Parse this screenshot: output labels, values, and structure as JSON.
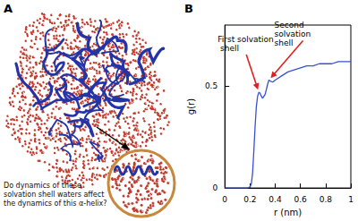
{
  "panels": {
    "A": {
      "label": "A",
      "text": "Do dynamics of these solvation shell waters affect the dynamics of this α-helix?"
    },
    "B": {
      "label": "B"
    }
  },
  "chart_data": {
    "type": "line",
    "x_label": "r (nm)",
    "y_label": "g(r)",
    "color": "#3a50d4",
    "grid": false,
    "x": [
      0,
      0.1,
      0.18,
      0.2,
      0.21,
      0.22,
      0.23,
      0.24,
      0.25,
      0.26,
      0.27,
      0.28,
      0.29,
      0.3,
      0.32,
      0.34,
      0.35,
      0.36,
      0.38,
      0.4,
      0.45,
      0.5,
      0.55,
      0.6,
      0.65,
      0.7,
      0.75,
      0.8,
      0.85,
      0.9,
      0.95,
      1.0
    ],
    "values": [
      0,
      0,
      0,
      0.005,
      0.02,
      0.07,
      0.18,
      0.3,
      0.4,
      0.45,
      0.47,
      0.465,
      0.45,
      0.44,
      0.46,
      0.51,
      0.53,
      0.525,
      0.52,
      0.53,
      0.55,
      0.57,
      0.58,
      0.59,
      0.6,
      0.6,
      0.61,
      0.61,
      0.61,
      0.62,
      0.62,
      0.62
    ],
    "xlim": [
      0,
      1
    ],
    "xticks": [
      0,
      0.2,
      0.4,
      0.6,
      0.8,
      1
    ],
    "ylim": [
      0,
      0.8
    ],
    "yticks": [
      0,
      0.5
    ],
    "annotations": [
      {
        "text": "First solvation shell",
        "x": 0.27,
        "y": 0.47,
        "color": "#e02020"
      },
      {
        "text": "Second solvation shell",
        "x": 0.35,
        "y": 0.53,
        "color": "#e02020"
      }
    ]
  }
}
